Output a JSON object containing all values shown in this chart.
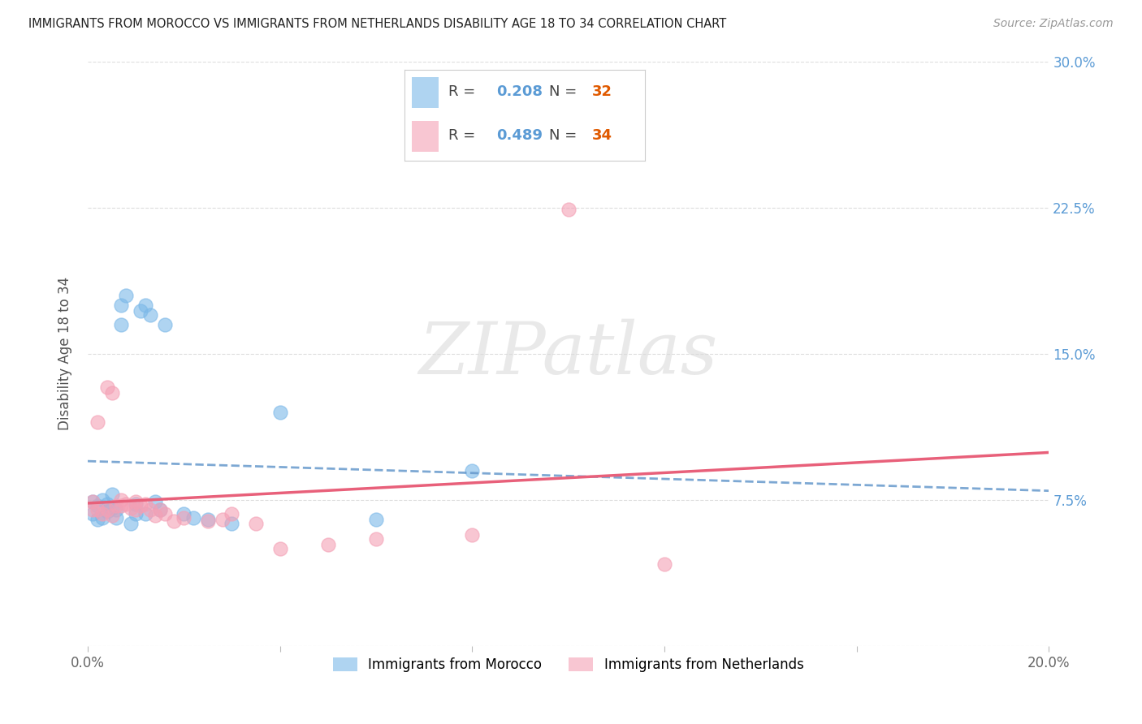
{
  "title": "IMMIGRANTS FROM MOROCCO VS IMMIGRANTS FROM NETHERLANDS DISABILITY AGE 18 TO 34 CORRELATION CHART",
  "source": "Source: ZipAtlas.com",
  "ylabel": "Disability Age 18 to 34",
  "xlim": [
    0.0,
    0.2
  ],
  "ylim": [
    0.0,
    0.3
  ],
  "xtick_positions": [
    0.0,
    0.04,
    0.08,
    0.12,
    0.16,
    0.2
  ],
  "ytick_positions": [
    0.0,
    0.075,
    0.15,
    0.225,
    0.3
  ],
  "xticklabels": [
    "0.0%",
    "",
    "",
    "",
    "",
    "20.0%"
  ],
  "yticklabels": [
    "",
    "7.5%",
    "15.0%",
    "22.5%",
    "30.0%"
  ],
  "background_color": "#ffffff",
  "watermark": "ZIPatlas",
  "morocco_color": "#7bb8e8",
  "netherlands_color": "#f4a0b5",
  "regression_morocco_color": "#6699cc",
  "regression_netherlands_color": "#e8607a",
  "tick_color_x": "#666666",
  "tick_color_y": "#5b9bd5",
  "morocco_R": "0.208",
  "morocco_N": "32",
  "netherlands_R": "0.489",
  "netherlands_N": "34",
  "legend_R_color": "#5b9bd5",
  "legend_N_color": "#e05a00",
  "morocco_points_x": [
    0.001,
    0.001,
    0.002,
    0.002,
    0.003,
    0.003,
    0.004,
    0.004,
    0.005,
    0.005,
    0.006,
    0.006,
    0.007,
    0.007,
    0.008,
    0.009,
    0.01,
    0.01,
    0.011,
    0.012,
    0.012,
    0.013,
    0.014,
    0.015,
    0.016,
    0.02,
    0.022,
    0.025,
    0.03,
    0.04,
    0.06,
    0.08
  ],
  "morocco_points_y": [
    0.074,
    0.068,
    0.072,
    0.065,
    0.075,
    0.066,
    0.073,
    0.069,
    0.078,
    0.071,
    0.066,
    0.07,
    0.165,
    0.175,
    0.18,
    0.063,
    0.073,
    0.068,
    0.172,
    0.175,
    0.068,
    0.17,
    0.074,
    0.07,
    0.165,
    0.068,
    0.066,
    0.065,
    0.063,
    0.12,
    0.065,
    0.09
  ],
  "netherlands_points_x": [
    0.001,
    0.001,
    0.002,
    0.002,
    0.003,
    0.004,
    0.004,
    0.005,
    0.005,
    0.006,
    0.007,
    0.007,
    0.008,
    0.009,
    0.01,
    0.01,
    0.011,
    0.012,
    0.013,
    0.014,
    0.015,
    0.016,
    0.018,
    0.02,
    0.025,
    0.028,
    0.03,
    0.035,
    0.04,
    0.05,
    0.06,
    0.08,
    0.1,
    0.12
  ],
  "netherlands_points_y": [
    0.074,
    0.07,
    0.115,
    0.07,
    0.068,
    0.133,
    0.07,
    0.067,
    0.13,
    0.072,
    0.075,
    0.072,
    0.073,
    0.071,
    0.074,
    0.07,
    0.072,
    0.073,
    0.07,
    0.067,
    0.07,
    0.068,
    0.064,
    0.066,
    0.064,
    0.065,
    0.068,
    0.063,
    0.05,
    0.052,
    0.055,
    0.057,
    0.224,
    0.042
  ],
  "grid_color": "#dddddd",
  "legend_Morocco": "Immigrants from Morocco",
  "legend_Netherlands": "Immigrants from Netherlands"
}
